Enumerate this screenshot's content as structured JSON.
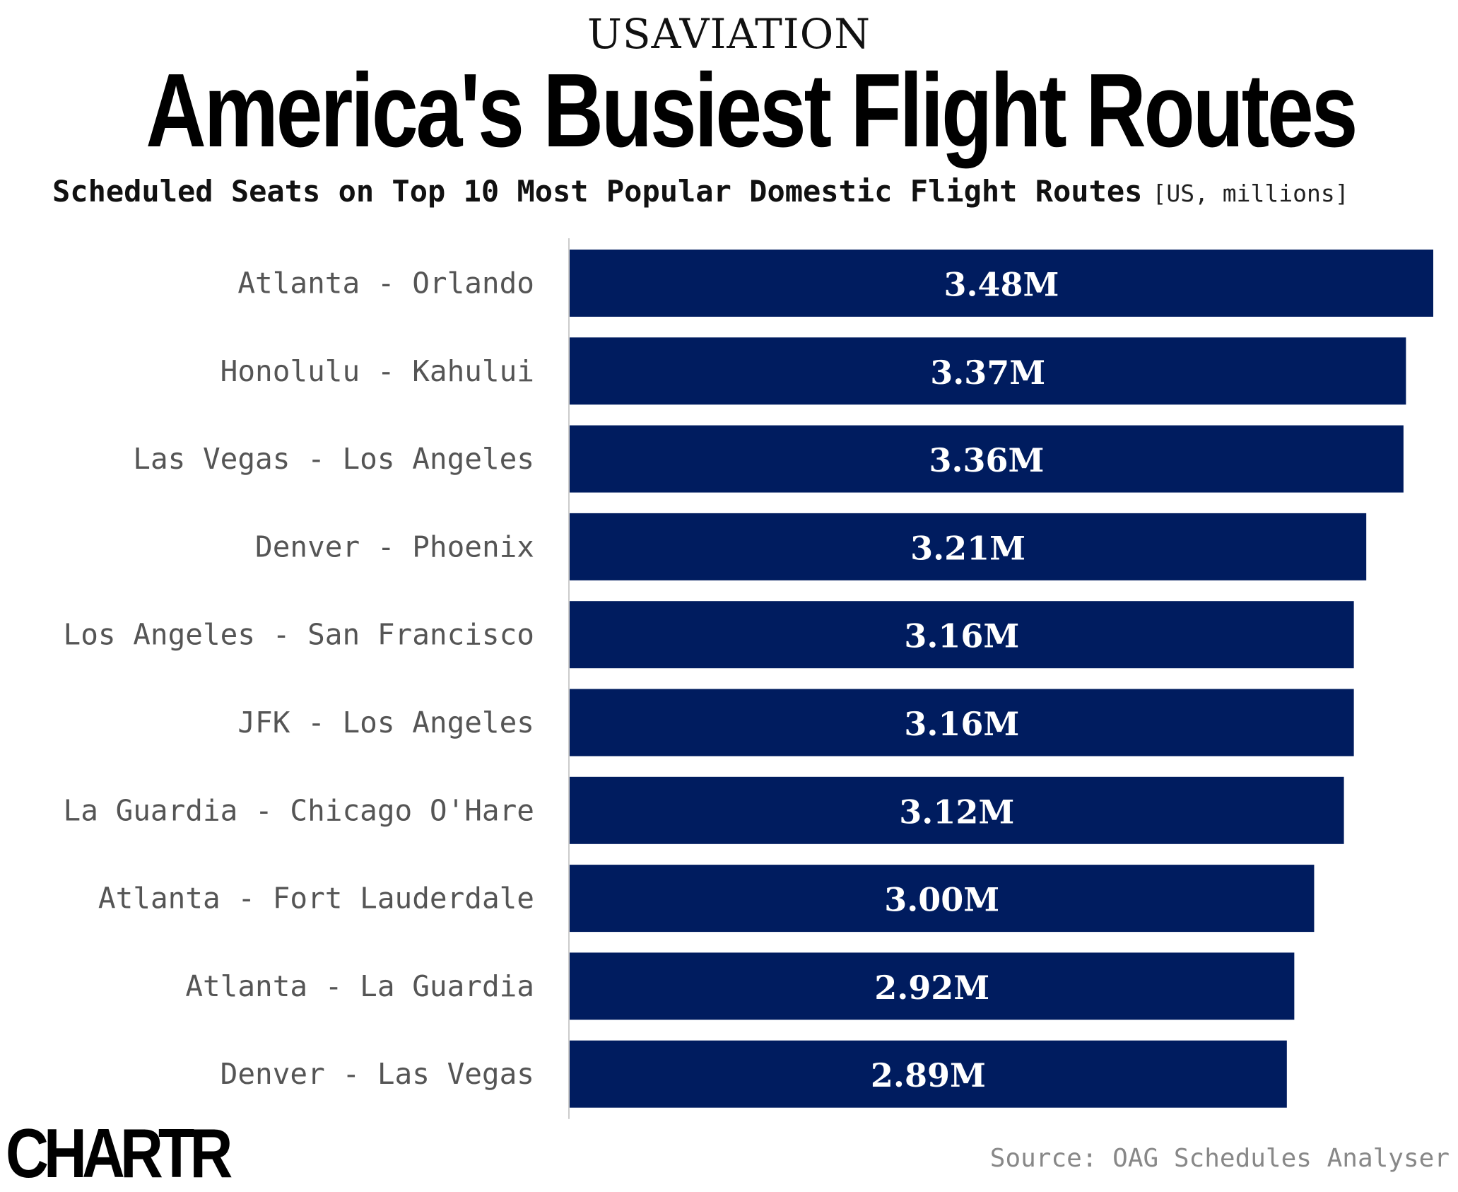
{
  "header": {
    "kicker": "USAVIATION",
    "title": "America's Busiest Flight Routes",
    "subtitle": "Scheduled Seats on Top 10 Most Popular Domestic Flight Routes",
    "unit": "[US, millions]"
  },
  "chart_data": {
    "type": "bar",
    "orientation": "horizontal",
    "categories": [
      "Atlanta - Orlando",
      "Honolulu - Kahului",
      "Las Vegas - Los Angeles",
      "Denver - Phoenix",
      "Los Angeles - San Francisco",
      "JFK - Los Angeles",
      "La Guardia - Chicago O'Hare",
      "Atlanta - Fort Lauderdale",
      "Atlanta - La Guardia",
      "Denver - Las Vegas"
    ],
    "values": [
      3.48,
      3.37,
      3.36,
      3.21,
      3.16,
      3.16,
      3.12,
      3.0,
      2.92,
      2.89
    ],
    "data_labels": [
      "3.48M",
      "3.37M",
      "3.36M",
      "3.21M",
      "3.16M",
      "3.16M",
      "3.12M",
      "3.00M",
      "2.92M",
      "2.89M"
    ],
    "xlim": [
      0,
      3.48
    ],
    "bar_color": "#001c5f",
    "grid": false,
    "legend": "none"
  },
  "footer": {
    "logo": "CHARTR",
    "source": "Source: OAG Schedules Analyser"
  }
}
